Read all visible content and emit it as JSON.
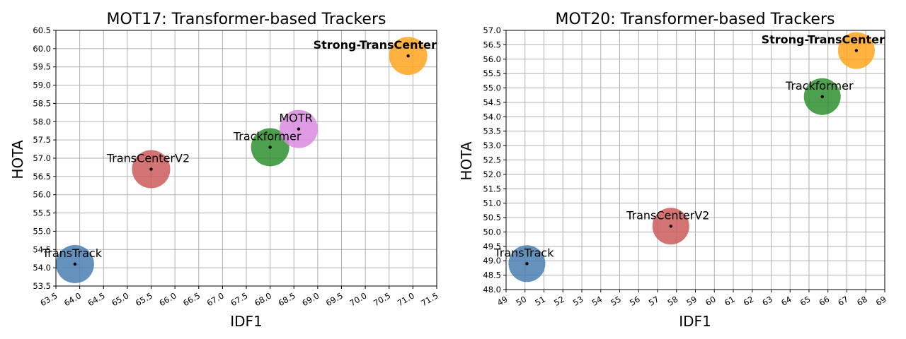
{
  "chart_data": [
    {
      "type": "scatter",
      "title": "MOT17: Transformer-based Trackers",
      "xlabel": "IDF1",
      "ylabel": "HOTA",
      "xlim": [
        63.5,
        71.5
      ],
      "ylim": [
        53.5,
        60.5
      ],
      "xticks": [
        "63.5",
        "64.0",
        "64.5",
        "65.0",
        "65.5",
        "66.0",
        "66.5",
        "67.0",
        "67.5",
        "68.0",
        "68.5",
        "69.0",
        "69.5",
        "70.0",
        "70.5",
        "71.0",
        "71.5"
      ],
      "yticks": [
        "53.5",
        "54.0",
        "54.5",
        "55.0",
        "55.5",
        "56.0",
        "56.5",
        "57.0",
        "57.5",
        "58.0",
        "58.5",
        "59.0",
        "59.5",
        "60.0",
        "60.5"
      ],
      "grid": true,
      "points": [
        {
          "label": "TransTrack",
          "x": 63.9,
          "y": 54.1,
          "color": "#4a7fb2",
          "bold": false
        },
        {
          "label": "TransCenterV2",
          "x": 65.5,
          "y": 56.7,
          "color": "#cd5a5a",
          "bold": false
        },
        {
          "label": "Trackformer",
          "x": 68.0,
          "y": 57.3,
          "color": "#2e8f2e",
          "bold": false
        },
        {
          "label": "MOTR",
          "x": 68.6,
          "y": 57.8,
          "color": "#d98be0",
          "bold": false
        },
        {
          "label": "Strong-TransCenter",
          "x": 70.9,
          "y": 59.8,
          "color": "#ffa51f",
          "bold": true
        }
      ]
    },
    {
      "type": "scatter",
      "title": "MOT20: Transformer-based Trackers",
      "xlabel": "IDF1",
      "ylabel": "HOTA",
      "xlim": [
        49,
        69
      ],
      "ylim": [
        48.0,
        57.0
      ],
      "xticks": [
        "49",
        "50",
        "51",
        "52",
        "53",
        "54",
        "55",
        "56",
        "57",
        "58",
        "59",
        "60",
        "61",
        "62",
        "63",
        "64",
        "65",
        "66",
        "67",
        "68",
        "69"
      ],
      "yticks": [
        "48.0",
        "48.5",
        "49.0",
        "49.5",
        "50.0",
        "50.5",
        "51.0",
        "51.5",
        "52.0",
        "52.5",
        "53.0",
        "53.5",
        "54.0",
        "54.5",
        "55.0",
        "55.5",
        "56.0",
        "56.5",
        "57.0"
      ],
      "grid": true,
      "points": [
        {
          "label": "TransTrack",
          "x": 50.1,
          "y": 48.9,
          "color": "#4a7fb2",
          "bold": false
        },
        {
          "label": "TransCenterV2",
          "x": 57.7,
          "y": 50.2,
          "color": "#cd5a5a",
          "bold": false
        },
        {
          "label": "Trackformer",
          "x": 65.7,
          "y": 54.7,
          "color": "#2e8f2e",
          "bold": false
        },
        {
          "label": "Strong-TransCenter",
          "x": 67.5,
          "y": 56.3,
          "color": "#ffa51f",
          "bold": true
        }
      ]
    }
  ]
}
